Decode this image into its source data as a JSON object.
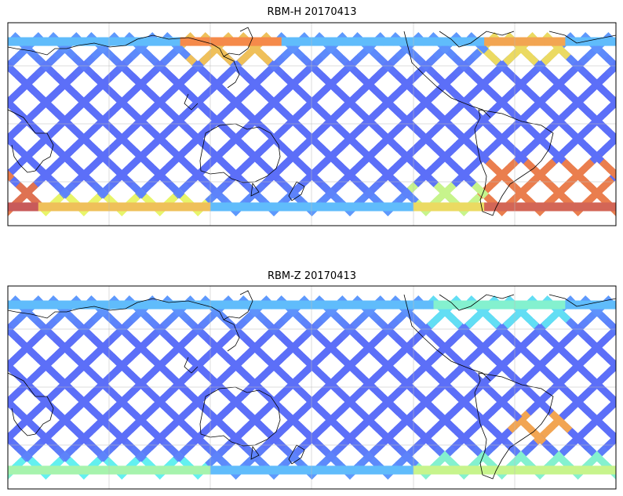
{
  "panels": [
    {
      "title": "RBM-H 20170413",
      "hot_regions": [
        {
          "lon0": 105,
          "lon1": 160,
          "lat0": 45,
          "lat1": 60,
          "level": 0.7
        },
        {
          "lon0": 280,
          "lon1": 330,
          "lat0": 45,
          "lat1": 60,
          "level": 0.65
        },
        {
          "lon0": 0,
          "lon1": 20,
          "lat0": -60,
          "lat1": -40,
          "level": 0.9
        },
        {
          "lon0": 20,
          "lon1": 120,
          "lat0": -60,
          "lat1": -48,
          "level": 0.6
        },
        {
          "lon0": 240,
          "lon1": 300,
          "lat0": -60,
          "lat1": -40,
          "level": 0.55
        },
        {
          "lon0": 280,
          "lon1": 360,
          "lat0": -60,
          "lat1": -25,
          "level": 0.85
        }
      ]
    },
    {
      "title": "RBM-Z 20170413",
      "hot_regions": [
        {
          "lon0": 250,
          "lon1": 330,
          "lat0": 45,
          "lat1": 60,
          "level": 0.35
        },
        {
          "lon0": 300,
          "lon1": 330,
          "lat0": -35,
          "lat1": -15,
          "level": 0.75
        },
        {
          "lon0": 0,
          "lon1": 120,
          "lat0": -60,
          "lat1": -48,
          "level": 0.4
        },
        {
          "lon0": 240,
          "lon1": 360,
          "lat0": -60,
          "lat1": -45,
          "level": 0.45
        }
      ]
    }
  ],
  "map": {
    "lon_range": [
      0,
      360
    ],
    "lat_range": [
      -70,
      70
    ],
    "swath_lat_range": [
      -60,
      60
    ],
    "gridline_lons": [
      60,
      120,
      180,
      240,
      300
    ],
    "gridline_lats": [
      -40,
      0,
      40
    ],
    "colormap": [
      "#5b5cf5",
      "#5fa8ff",
      "#63f0f0",
      "#e8f56a",
      "#f58a4a",
      "#c85a5a"
    ]
  }
}
